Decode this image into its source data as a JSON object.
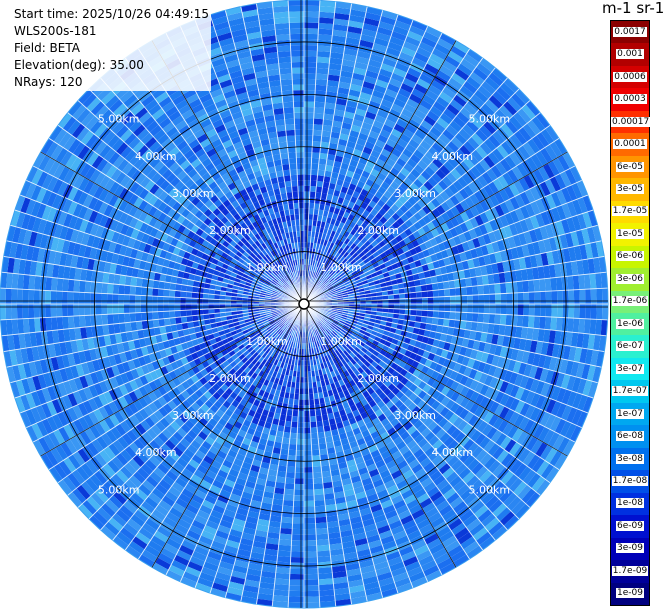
{
  "info": {
    "start_time": "Start time: 2025/10/26 04:49:15",
    "instrument": "WLS200s-181",
    "field": "Field: BETA",
    "elevation": "Elevation(deg): 35.00",
    "nrays": "NRays: 120"
  },
  "unit_label": "m-1 sr-1",
  "colorbar": {
    "labels": [
      "0.0017",
      "0.001",
      "0.0006",
      "0.0003",
      "0.00017",
      "0.0001",
      "6e-05",
      "3e-05",
      "1.7e-05",
      "1e-05",
      "6e-06",
      "3e-06",
      "1.7e-06",
      "1e-06",
      "6e-07",
      "3e-07",
      "1.7e-07",
      "1e-07",
      "6e-08",
      "3e-08",
      "1.7e-08",
      "1e-08",
      "6e-09",
      "3e-09",
      "1.7e-09",
      "1e-09"
    ],
    "colors": [
      "#8b0000",
      "#b20000",
      "#d40000",
      "#f00000",
      "#ff3000",
      "#ff6a00",
      "#ff9500",
      "#ffb800",
      "#ffdb00",
      "#f2f200",
      "#c8f500",
      "#a0ef30",
      "#78f078",
      "#50f0a0",
      "#2af0d0",
      "#10e8f0",
      "#00c8f0",
      "#00a8f0",
      "#0090f0",
      "#0070ee",
      "#0050e8",
      "#0030e0",
      "#0010d0",
      "#0000b8",
      "#00009a",
      "#000080"
    ]
  },
  "chart_data": {
    "type": "heatmap",
    "subtype": "ppi",
    "rays": 120,
    "range_rings_km": [
      1,
      2,
      3,
      4,
      5
    ],
    "range_ring_labels": [
      "1.00km",
      "2.00km",
      "3.00km",
      "4.00km",
      "5.00km"
    ],
    "max_range_km": 5.8,
    "dominant_value": "3e-08",
    "value_range": [
      "1e-09",
      "1.7e-07"
    ]
  }
}
